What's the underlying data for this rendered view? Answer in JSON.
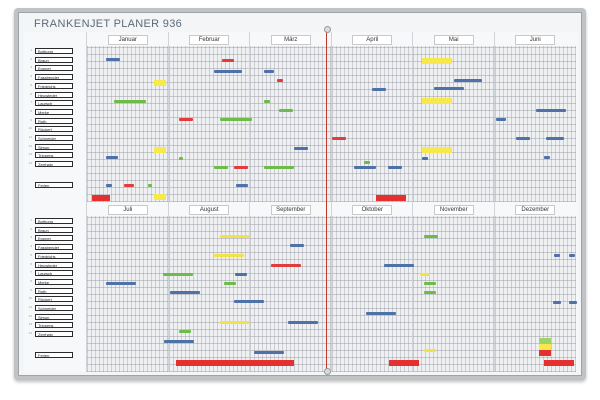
{
  "header": {
    "brand": "FRANKEN",
    "product": "JET PLANER 936"
  },
  "top_months": [
    "Januar",
    "Februar",
    "März",
    "April",
    "Mai",
    "Juni"
  ],
  "bottom_months": [
    "Juli",
    "August",
    "September",
    "Oktober",
    "November",
    "Dezember"
  ],
  "names": [
    "Bothung",
    "Braun",
    "Eppner",
    "Fassbender",
    "Friedrichs",
    "Heuwieder",
    "Laursch",
    "Merke",
    "Roth",
    "Rückert",
    "Schneider",
    "Simon",
    "Trippens",
    "Zerrhain"
  ],
  "ferien_label": "Ferien"
}
